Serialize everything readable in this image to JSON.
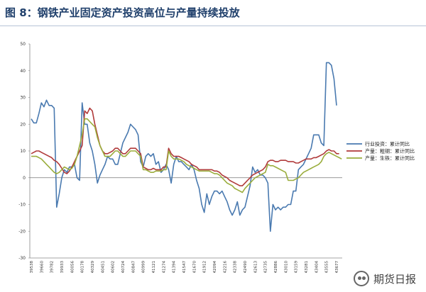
{
  "header": {
    "title": "图 8：钢铁产业固定资产投资高位与产量持续投放"
  },
  "watermark": {
    "text": "期货日报"
  },
  "chart_data": {
    "type": "line",
    "ylim": [
      -30,
      50
    ],
    "yticks": [
      50,
      40,
      30,
      20,
      10,
      0,
      -10,
      -20,
      -30
    ],
    "x_tick_labels": [
      "39538",
      "39660",
      "39782",
      "39933",
      "40056",
      "40178",
      "40329",
      "40451",
      "40602",
      "40724",
      "40847",
      "40999",
      "41121",
      "41274",
      "41394",
      "41547",
      "41670",
      "41912",
      "42094",
      "42216",
      "42338",
      "42490",
      "42613",
      "42735",
      "42886",
      "43010",
      "43159",
      "43281",
      "43404",
      "43555",
      "43677"
    ],
    "legend_position": "right",
    "series": [
      {
        "name": "行业投资：累计同比",
        "color": "#4a7ab0",
        "values": [
          22,
          20.5,
          20.5,
          24,
          28,
          26.5,
          29,
          27,
          27,
          26,
          -11,
          -6,
          0,
          3,
          2,
          4,
          4,
          5,
          0,
          -1,
          28,
          20,
          20,
          13,
          10,
          5,
          -2,
          1,
          3,
          5,
          8,
          7,
          7,
          5,
          5,
          9,
          13,
          15,
          17,
          20,
          19,
          18,
          16,
          6,
          4,
          8,
          9,
          8,
          9,
          5,
          6,
          2,
          3,
          5,
          3,
          -2,
          5,
          8,
          6,
          6,
          5,
          4,
          3,
          5,
          3,
          -1,
          -4,
          -10,
          -13,
          -6,
          -10,
          -7,
          -5,
          -5,
          -6,
          -5,
          -7,
          -9,
          -12,
          -14,
          -12,
          -9,
          -14,
          -12,
          -11,
          -7,
          -3,
          4,
          2,
          3,
          1,
          1,
          0,
          -2,
          -20,
          -10,
          -12,
          -11,
          -12,
          -11,
          -11,
          -10,
          -10,
          -5,
          -5,
          3,
          4,
          5,
          7,
          9,
          11,
          16,
          16,
          16,
          13,
          12,
          43,
          43,
          42,
          37,
          27
        ]
      },
      {
        "name": "产量：粗钢：累计同比",
        "color": "#b03a3a",
        "values": [
          9,
          9.5,
          10,
          10,
          9.5,
          9,
          8.5,
          8,
          7.5,
          6.5,
          6,
          5,
          3.5,
          2,
          1.5,
          2.5,
          4,
          6,
          8,
          10,
          12,
          25,
          24,
          26,
          25,
          20,
          16,
          12,
          10,
          9,
          9,
          9.5,
          10,
          11,
          11,
          10,
          9,
          9,
          10,
          11,
          11,
          11,
          10,
          9,
          4,
          3.5,
          3,
          3,
          3.5,
          3,
          3,
          3,
          4,
          4,
          11,
          9,
          8,
          8,
          8,
          7.5,
          7,
          6.5,
          6,
          5,
          4.5,
          4,
          3,
          3,
          3,
          3,
          3,
          3,
          2.5,
          2.5,
          2,
          1,
          0.5,
          0,
          -1,
          -1.5,
          -2,
          -2.5,
          -3,
          -3,
          -2,
          -1,
          0,
          1,
          1.5,
          2,
          2.5,
          3,
          4,
          6,
          6.5,
          6.5,
          6,
          6,
          6.5,
          6.5,
          6.5,
          6,
          6,
          6,
          5.5,
          5.5,
          6,
          6.5,
          7,
          7,
          7,
          7.5,
          7.5,
          8,
          8.5,
          9,
          10,
          10.5,
          10,
          10,
          9,
          9
        ]
      },
      {
        "name": "产量：生铁：累计同比",
        "color": "#9aad3c",
        "values": [
          8,
          8,
          8,
          7.5,
          7,
          6,
          5,
          4,
          3,
          2,
          1.5,
          2,
          3,
          4,
          3.5,
          3,
          3.5,
          5,
          8,
          12,
          16,
          22,
          22,
          21,
          20,
          19,
          15,
          12,
          10,
          8,
          8,
          8,
          9,
          10,
          10,
          9,
          8,
          8,
          9,
          10,
          10,
          10,
          9,
          8,
          3,
          3,
          2.5,
          2,
          2,
          2.5,
          2.5,
          2.5,
          3,
          3,
          10,
          8,
          7,
          7,
          7,
          6.5,
          6,
          5,
          4.5,
          4,
          3.5,
          3,
          2.5,
          2.5,
          2.5,
          2.5,
          2.5,
          2,
          1.5,
          1.5,
          1,
          0,
          -1,
          -2,
          -2.5,
          -3,
          -4,
          -4.5,
          -5,
          -5.5,
          -4,
          -3,
          -2,
          -1,
          0,
          0.5,
          1,
          1.5,
          2,
          5,
          4.5,
          4.5,
          4,
          3.5,
          3,
          2.5,
          2,
          -1,
          -1,
          -1,
          -0.5,
          0,
          1,
          2,
          2.5,
          3,
          3.5,
          4,
          4.5,
          5,
          6,
          8,
          9,
          9.5,
          9,
          8.5,
          8,
          7.5,
          7
        ]
      }
    ]
  }
}
